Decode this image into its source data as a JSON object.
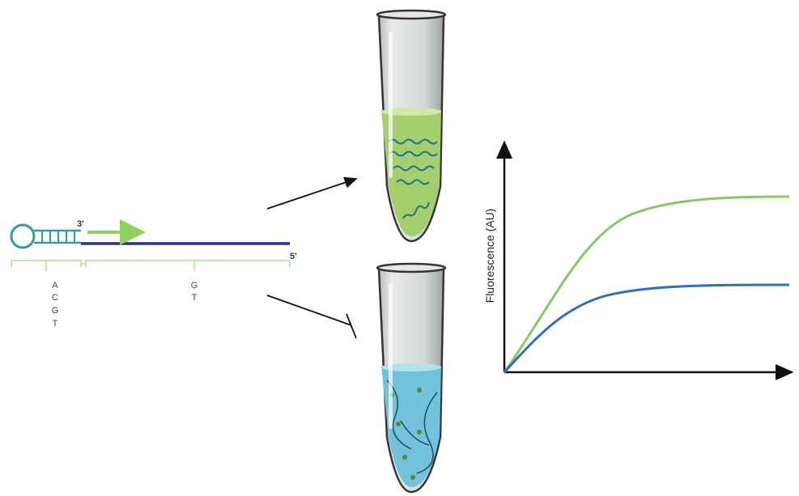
{
  "diagram": {
    "end_labels": [
      "3'",
      "5'"
    ],
    "primer_bases": [
      "A",
      "C",
      "G",
      "T"
    ],
    "template_bases": [
      "G",
      "T"
    ],
    "y_axis_label": "Fluorescence (AU)"
  }
}
